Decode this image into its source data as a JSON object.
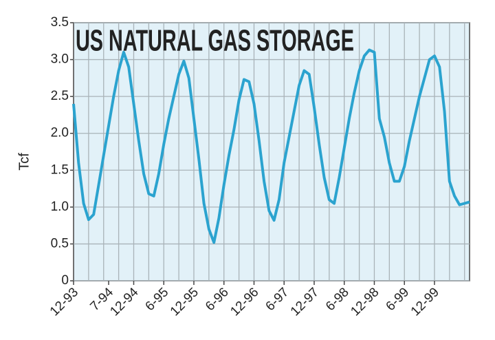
{
  "chart_data": {
    "type": "line",
    "title": "US NATURAL GAS STORAGE",
    "y_label": "Tcf",
    "categories": [
      "12-93",
      null,
      null,
      null,
      null,
      null,
      null,
      "7-94",
      null,
      null,
      null,
      null,
      "12-94",
      null,
      null,
      null,
      null,
      null,
      "6-95",
      null,
      null,
      null,
      null,
      null,
      "12-95",
      null,
      null,
      null,
      null,
      null,
      "6-96",
      null,
      null,
      null,
      null,
      null,
      "12-96",
      null,
      null,
      null,
      null,
      null,
      "6-97",
      null,
      null,
      null,
      null,
      null,
      "12-97",
      null,
      null,
      null,
      null,
      null,
      "6-98",
      null,
      null,
      null,
      null,
      null,
      "12-98",
      null,
      null,
      null,
      null,
      null,
      "6-99",
      null,
      null,
      null,
      null,
      null,
      "12-99",
      null,
      null,
      null,
      null,
      null,
      null,
      null
    ],
    "values": [
      2.4,
      1.6,
      1.05,
      0.83,
      0.9,
      1.3,
      1.7,
      2.1,
      2.5,
      2.85,
      3.1,
      2.9,
      2.4,
      1.9,
      1.45,
      1.18,
      1.15,
      1.45,
      1.85,
      2.2,
      2.5,
      2.8,
      2.98,
      2.75,
      2.2,
      1.65,
      1.05,
      0.7,
      0.52,
      0.85,
      1.3,
      1.7,
      2.05,
      2.45,
      2.73,
      2.7,
      2.4,
      1.9,
      1.35,
      0.95,
      0.82,
      1.1,
      1.6,
      1.95,
      2.3,
      2.65,
      2.85,
      2.8,
      2.35,
      1.85,
      1.4,
      1.1,
      1.05,
      1.4,
      1.8,
      2.2,
      2.55,
      2.85,
      3.05,
      3.13,
      3.1,
      2.2,
      1.95,
      1.6,
      1.35,
      1.35,
      1.55,
      1.9,
      2.2,
      2.5,
      2.75,
      3.0,
      3.05,
      2.9,
      2.3,
      1.35,
      1.15,
      1.03,
      1.05,
      1.07
    ],
    "color": "#2ba3cf",
    "ylim": [
      0,
      3.5
    ],
    "yticks": [
      0,
      0.5,
      {
        "value": 1,
        "label": "1.0"
      },
      1.5,
      {
        "value": 2,
        "label": "2.0"
      },
      2.5,
      {
        "value": 3,
        "label": "3.0"
      },
      3.5
    ],
    "grid": true
  }
}
